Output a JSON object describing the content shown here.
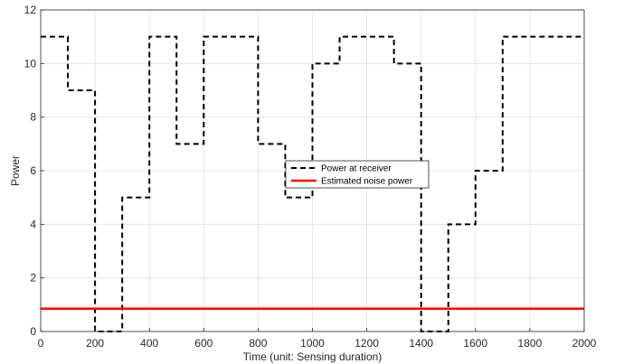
{
  "chart_data": {
    "type": "line",
    "title": "",
    "xlabel": "Time (unit: Sensing duration)",
    "ylabel": "Power",
    "xlim": [
      0,
      2000
    ],
    "ylim": [
      0,
      12
    ],
    "xticks": [
      "0",
      "200",
      "400",
      "600",
      "800",
      "1000",
      "1200",
      "1400",
      "1600",
      "1800",
      "2000"
    ],
    "yticks": [
      "0",
      "2",
      "4",
      "6",
      "8",
      "10",
      "12"
    ],
    "grid": true,
    "legend_position": "center",
    "series": [
      {
        "name": "Power at receiver",
        "style": "dashed",
        "color": "#000000",
        "x": [
          0,
          100,
          100,
          200,
          200,
          300,
          300,
          400,
          400,
          500,
          500,
          600,
          600,
          800,
          800,
          900,
          900,
          1000,
          1000,
          1100,
          1100,
          1300,
          1300,
          1400,
          1400,
          1500,
          1500,
          1600,
          1600,
          1700,
          1700,
          2000
        ],
        "y": [
          11,
          11,
          9,
          9,
          0,
          0,
          5,
          5,
          11,
          11,
          7,
          7,
          11,
          11,
          7,
          7,
          5,
          5,
          10,
          10,
          11,
          11,
          10,
          10,
          0,
          0,
          4,
          4,
          6,
          6,
          11,
          11
        ]
      },
      {
        "name": "Estimated noise power",
        "style": "solid",
        "color": "#ff0000",
        "x": [
          0,
          2000
        ],
        "y": [
          0.85,
          0.85
        ]
      }
    ]
  }
}
